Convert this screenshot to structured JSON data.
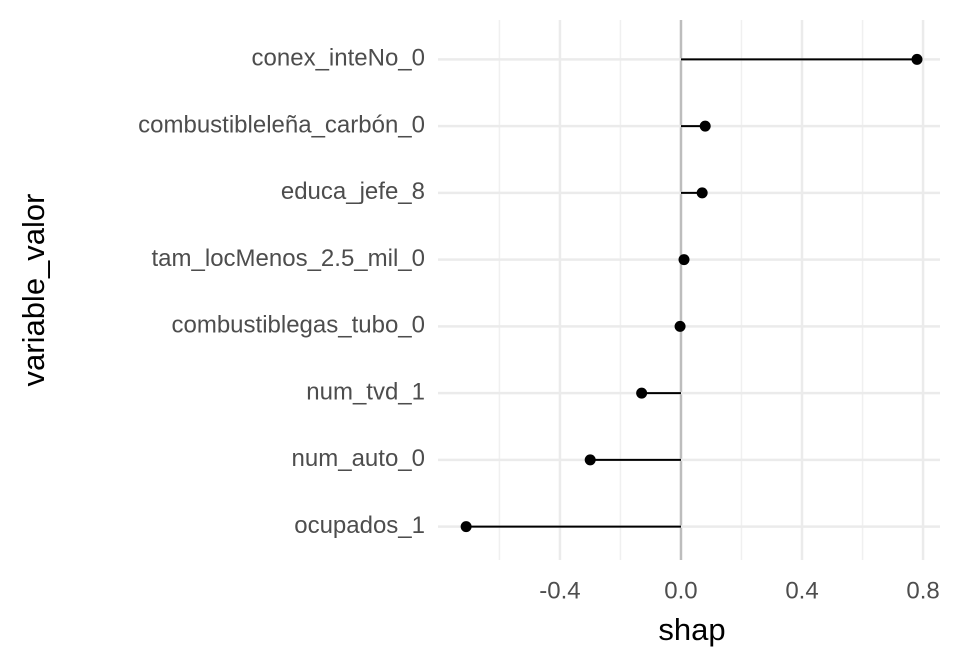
{
  "chart_data": {
    "type": "lollipop",
    "x_label": "shap",
    "y_label": "variable_valor",
    "categories": [
      "conex_inteNo_0",
      "combustibleleña_carbón_0",
      "educa_jefe_8",
      "tam_locMenos_2.5_mil_0",
      "combustiblegas_tubo_0",
      "num_tvd_1",
      "num_auto_0",
      "ocupados_1"
    ],
    "values": [
      0.78,
      0.08,
      0.07,
      0.01,
      -0.003,
      -0.13,
      -0.3,
      -0.71
    ],
    "color": "#000000",
    "xlim": [
      -0.803,
      0.856
    ],
    "xticks": [
      -0.4,
      {
        "value": 0,
        "label": "0.0"
      },
      0.4,
      0.8
    ],
    "minor_xticks": [
      -0.6,
      -0.2,
      0.2,
      0.6
    ],
    "grid": true
  }
}
